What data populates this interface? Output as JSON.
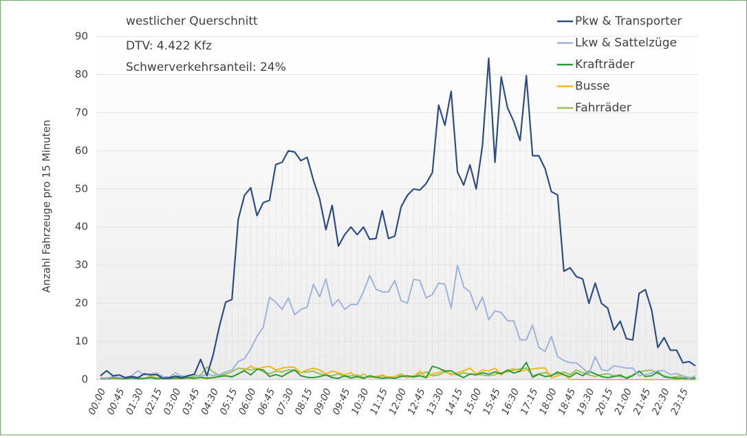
{
  "chart_data": {
    "type": "line",
    "annotations": [
      "westlicher Querschnitt",
      "DTV: 4.422 Kfz",
      "Schwerverkehrsanteil: 24%"
    ],
    "y_label": "Anzahl Fahrzeuge pro 15 Minuten",
    "categories": [
      "00:00",
      null,
      null,
      "00:45",
      null,
      null,
      "01:30",
      null,
      null,
      "02:15",
      null,
      null,
      "03:00",
      null,
      null,
      "03:45",
      null,
      null,
      "04:30",
      null,
      null,
      "05:15",
      null,
      null,
      "06:00",
      null,
      null,
      "06:45",
      null,
      null,
      "07:30",
      null,
      null,
      "08:15",
      null,
      null,
      "09:00",
      null,
      null,
      "09:45",
      null,
      null,
      "10:30",
      null,
      null,
      "11:15",
      null,
      null,
      "12:00",
      null,
      null,
      "12:45",
      null,
      null,
      "13:30",
      null,
      null,
      "14:15",
      null,
      null,
      "15:00",
      null,
      null,
      "15:45",
      null,
      null,
      "16:30",
      null,
      null,
      "17:15",
      null,
      null,
      "18:00",
      null,
      null,
      "18:45",
      null,
      null,
      "19:30",
      null,
      null,
      "20:15",
      null,
      null,
      "21:00",
      null,
      null,
      "21:45",
      null,
      null,
      "22:30",
      null,
      null,
      "23:15",
      null,
      null
    ],
    "series": [
      {
        "name": "Pkw & Transporter",
        "color": "#2e4c84",
        "values": [
          1,
          2.3,
          1,
          1.2,
          0.5,
          0.8,
          0.5,
          1.5,
          1.2,
          1.3,
          0.3,
          0.5,
          0.9,
          0.5,
          1,
          1.4,
          5.3,
          1,
          6.5,
          14,
          20.3,
          21,
          42,
          48.3,
          50.3,
          43,
          46.4,
          47,
          56.4,
          57,
          60,
          59.7,
          57.4,
          58.3,
          52.3,
          47.4,
          39.3,
          45.7,
          35,
          38,
          40,
          38,
          40,
          36.8,
          37,
          44.3,
          37,
          37.6,
          45.3,
          48.3,
          50,
          49.7,
          51.4,
          54.3,
          72,
          66.7,
          75.6,
          54.5,
          51,
          56.3,
          50,
          61.4,
          84.3,
          57,
          79.4,
          71.3,
          67.7,
          62.7,
          79.7,
          58.7,
          58.7,
          55.3,
          49.3,
          48.4,
          28.4,
          29.3,
          27,
          26.4,
          20,
          25.3,
          20,
          18.7,
          13,
          15.3,
          10.7,
          10.4,
          22.6,
          23.6,
          18.3,
          8.4,
          11,
          7.7,
          7.7,
          4.4,
          4.7,
          3.6
        ]
      },
      {
        "name": "Lkw & Sattelzüge",
        "color": "#9fb3d8",
        "values": [
          0.5,
          0.3,
          0.8,
          0.5,
          0.6,
          1,
          2.3,
          1.2,
          1.5,
          1.7,
          0.8,
          0.6,
          1.8,
          0.8,
          1,
          1.3,
          0.8,
          1.5,
          1,
          1.3,
          2,
          2.5,
          4.7,
          5.5,
          8,
          11.3,
          13.7,
          21.6,
          20.3,
          18.4,
          21.4,
          17,
          18.4,
          19,
          25,
          21.7,
          26.4,
          19.3,
          21,
          18.4,
          19.7,
          19.7,
          23,
          27.3,
          23.7,
          23,
          23,
          26,
          20.7,
          20,
          26.3,
          26,
          21.4,
          22.3,
          25.3,
          25,
          18.7,
          30,
          24.3,
          23,
          18.3,
          21.6,
          15.7,
          18,
          17.6,
          15.4,
          15.4,
          10.4,
          10.4,
          14.3,
          8.4,
          7.4,
          11.3,
          6,
          5,
          4.4,
          4.4,
          3,
          1.5,
          6,
          2.6,
          2.3,
          3.6,
          3.3,
          3,
          3,
          1,
          1.3,
          1.7,
          2.3,
          2.3,
          1.3,
          1.6,
          1,
          0.3,
          1
        ]
      },
      {
        "name": "Krafträder",
        "color": "#2e9a3c",
        "values": [
          0.3,
          0.2,
          0.5,
          0.3,
          0.2,
          0.4,
          0.2,
          0.3,
          0.5,
          0.2,
          0.3,
          0.2,
          0.4,
          0.3,
          0.5,
          0.3,
          0.6,
          0.4,
          0.5,
          0.8,
          1,
          0.7,
          1.5,
          2.3,
          1.2,
          2.7,
          2.5,
          0.8,
          1.3,
          0.8,
          1.8,
          2.5,
          1,
          0.6,
          0.5,
          0.8,
          1.2,
          0.5,
          0.3,
          1,
          0.4,
          0.8,
          0.3,
          1,
          0.6,
          0.3,
          0.5,
          0.3,
          0.8,
          1,
          0.7,
          1,
          0.5,
          3.5,
          3,
          2.2,
          2.3,
          1.3,
          0.5,
          1.5,
          1.2,
          1.8,
          1.4,
          2,
          1.5,
          2.5,
          1.7,
          2.2,
          4.5,
          0.6,
          1.4,
          0.8,
          1,
          2,
          1.2,
          0.7,
          1.8,
          1,
          2.2,
          1.5,
          0.8,
          0.5,
          0.8,
          1.2,
          0.3,
          1,
          2.2,
          0.8,
          1,
          2,
          0.7,
          0.5,
          0.3,
          0.4,
          0.2,
          0.3
        ]
      },
      {
        "name": "Busse",
        "color": "#f2b81f",
        "values": [
          0.3,
          0.5,
          0.2,
          0.3,
          0.5,
          0.4,
          0.2,
          0.3,
          0.5,
          0.3,
          0.2,
          0.5,
          0.3,
          0.2,
          0.4,
          0.3,
          0.5,
          0.2,
          0.5,
          0.8,
          1,
          0.8,
          1.5,
          2.5,
          3.5,
          2.8,
          3.2,
          3.5,
          2.5,
          3,
          3.3,
          3.2,
          1.8,
          2.5,
          3,
          2.5,
          1.5,
          2.2,
          1.8,
          1.2,
          1.8,
          0.5,
          1.5,
          0.5,
          0.8,
          1.2,
          0.6,
          0.8,
          1.5,
          0.6,
          0.8,
          2.2,
          0.5,
          1.5,
          1.8,
          2.5,
          1.2,
          1.8,
          2.3,
          3,
          1.5,
          2.5,
          2.2,
          3,
          1.2,
          2.5,
          2.8,
          2.2,
          2.5,
          2.8,
          3,
          3,
          0.5,
          1,
          1.5,
          0,
          0,
          0,
          0,
          0,
          0,
          0,
          0,
          0,
          0,
          0,
          0,
          0,
          0,
          0,
          0,
          0,
          0,
          0,
          0,
          0
        ]
      },
      {
        "name": "Fahrräder",
        "color": "#92c353",
        "values": [
          0.2,
          0.3,
          0.2,
          0.5,
          0.3,
          0.8,
          0.5,
          0.3,
          0.8,
          0.5,
          0.3,
          0.5,
          0.8,
          1,
          0.5,
          0.8,
          1.2,
          3.3,
          2,
          1,
          1.5,
          2,
          3,
          2.8,
          2.5,
          3,
          2,
          1.5,
          2.2,
          2,
          2.5,
          2.5,
          1.8,
          2,
          2.2,
          1.5,
          1.2,
          1,
          1.5,
          0.8,
          1,
          1.2,
          0.5,
          0.8,
          0.5,
          1,
          0.5,
          0.8,
          1.2,
          0.5,
          1,
          1.5,
          2,
          1,
          1.2,
          2,
          1.5,
          1.2,
          1.8,
          1.3,
          1.5,
          1.2,
          1,
          1.3,
          1.8,
          2,
          2.5,
          2.8,
          3,
          1,
          1.5,
          1.8,
          1.2,
          1.5,
          2,
          1.3,
          2.5,
          1.8,
          1.2,
          0.8,
          1.3,
          1.5,
          1,
          0.8,
          0.5,
          1.2,
          2,
          2.3,
          2.5,
          1.5,
          1,
          0.5,
          0.8,
          1,
          0.5,
          0.5
        ]
      }
    ],
    "ylim": [
      0,
      90
    ],
    "yticks": [
      0,
      10,
      20,
      30,
      40,
      50,
      60,
      70,
      80,
      90
    ],
    "grid": true,
    "legend": "upper right"
  }
}
